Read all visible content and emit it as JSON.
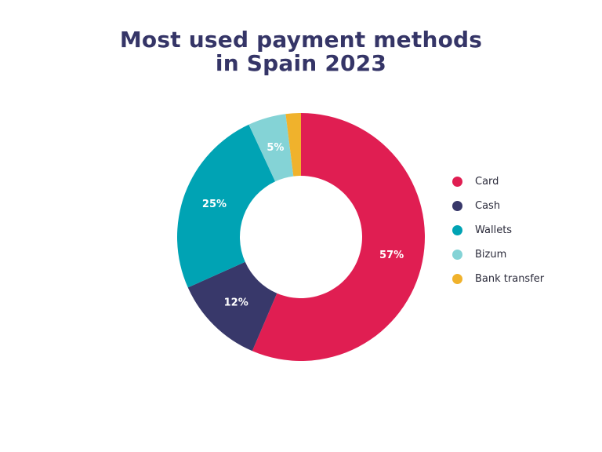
{
  "chart_data": {
    "type": "pie",
    "title_lines": [
      "Most used payment methods",
      "in Spain 2023"
    ],
    "categories": [
      "Card",
      "Cash",
      "Wallets",
      "Bizum",
      "Bank transfer"
    ],
    "values": [
      57,
      12,
      25,
      5,
      2
    ],
    "value_labels": [
      "57%",
      "12%",
      "25%",
      "5%",
      ""
    ],
    "colors": [
      "#e01e52",
      "#38386a",
      "#00a3b4",
      "#84d3d6",
      "#f0b22c"
    ],
    "legend_position": "right"
  }
}
